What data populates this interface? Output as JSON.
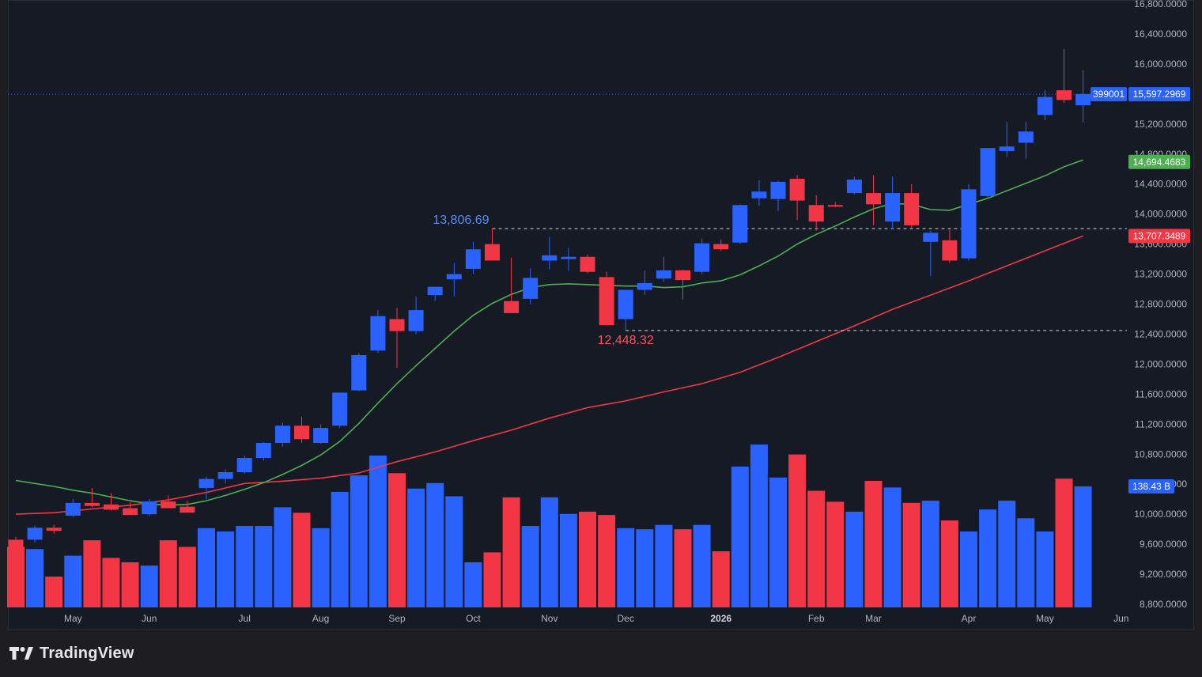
{
  "chart_data": {
    "type": "candlestick",
    "timeframe": "weekly",
    "y_axis": {
      "ticks": [
        "16,800.0000",
        "16,400.0000",
        "16,000.0000",
        "15,200.0000",
        "14,800.0000",
        "14,400.0000",
        "14,000.0000",
        "13,600.0000",
        "13,200.0000",
        "12,800.0000",
        "12,400.0000",
        "12,000.0000",
        "11,600.0000",
        "11,200.0000",
        "10,800.0000",
        "10,400.0000",
        "10,000.0000",
        "9,600.0000",
        "9,200.0000",
        "8,800.0000"
      ],
      "range": [
        8800,
        16850
      ]
    },
    "x_axis": {
      "labels": [
        "May",
        "Jun",
        "Jul",
        "Aug",
        "Sep",
        "Oct",
        "Nov",
        "Dec",
        "2026",
        "Feb",
        "Mar",
        "Apr",
        "May",
        "Jun"
      ],
      "label_bar_index": [
        3,
        7,
        12,
        16,
        20,
        24,
        28,
        32,
        37,
        42,
        45,
        50,
        54,
        58
      ],
      "strong_labels": [
        "2026"
      ]
    },
    "candles": [
      {
        "o": 9660,
        "h": 9700,
        "l": 9500,
        "c": 9500
      },
      {
        "o": 9660,
        "h": 9850,
        "l": 9620,
        "c": 9820
      },
      {
        "o": 9820,
        "h": 9860,
        "l": 9740,
        "c": 9780
      },
      {
        "o": 9980,
        "h": 10200,
        "l": 9960,
        "c": 10150
      },
      {
        "o": 10150,
        "h": 10350,
        "l": 10090,
        "c": 10110
      },
      {
        "o": 10130,
        "h": 10280,
        "l": 10050,
        "c": 10060
      },
      {
        "o": 10080,
        "h": 10160,
        "l": 9990,
        "c": 9990
      },
      {
        "o": 10000,
        "h": 10200,
        "l": 9980,
        "c": 10170
      },
      {
        "o": 10170,
        "h": 10250,
        "l": 10080,
        "c": 10080
      },
      {
        "o": 10100,
        "h": 10180,
        "l": 10020,
        "c": 10020
      },
      {
        "o": 10350,
        "h": 10500,
        "l": 10200,
        "c": 10470
      },
      {
        "o": 10470,
        "h": 10600,
        "l": 10410,
        "c": 10560
      },
      {
        "o": 10560,
        "h": 10780,
        "l": 10540,
        "c": 10750
      },
      {
        "o": 10750,
        "h": 10960,
        "l": 10710,
        "c": 10950
      },
      {
        "o": 10950,
        "h": 11220,
        "l": 10900,
        "c": 11180
      },
      {
        "o": 11180,
        "h": 11300,
        "l": 10950,
        "c": 11000
      },
      {
        "o": 10950,
        "h": 11200,
        "l": 10940,
        "c": 11150
      },
      {
        "o": 11180,
        "h": 11620,
        "l": 11150,
        "c": 11620
      },
      {
        "o": 11650,
        "h": 12150,
        "l": 11640,
        "c": 12120
      },
      {
        "o": 12180,
        "h": 12720,
        "l": 12150,
        "c": 12640
      },
      {
        "o": 12600,
        "h": 12750,
        "l": 11950,
        "c": 12440
      },
      {
        "o": 12440,
        "h": 12900,
        "l": 12400,
        "c": 12720
      },
      {
        "o": 12920,
        "h": 13030,
        "l": 12840,
        "c": 13030
      },
      {
        "o": 13130,
        "h": 13350,
        "l": 12900,
        "c": 13200
      },
      {
        "o": 13270,
        "h": 13630,
        "l": 13200,
        "c": 13530
      },
      {
        "o": 13600,
        "h": 13810,
        "l": 13440,
        "c": 13380
      },
      {
        "o": 12840,
        "h": 13420,
        "l": 12680,
        "c": 12680
      },
      {
        "o": 12870,
        "h": 13280,
        "l": 12800,
        "c": 13150
      },
      {
        "o": 13380,
        "h": 13700,
        "l": 13260,
        "c": 13450
      },
      {
        "o": 13400,
        "h": 13550,
        "l": 13240,
        "c": 13430
      },
      {
        "o": 13430,
        "h": 13460,
        "l": 13210,
        "c": 13230
      },
      {
        "o": 13160,
        "h": 13230,
        "l": 12520,
        "c": 12520
      },
      {
        "o": 12600,
        "h": 12990,
        "l": 12450,
        "c": 12990
      },
      {
        "o": 12990,
        "h": 13250,
        "l": 12920,
        "c": 13080
      },
      {
        "o": 13140,
        "h": 13430,
        "l": 13100,
        "c": 13250
      },
      {
        "o": 13250,
        "h": 13260,
        "l": 12860,
        "c": 13120
      },
      {
        "o": 13230,
        "h": 13670,
        "l": 13200,
        "c": 13610
      },
      {
        "o": 13600,
        "h": 13660,
        "l": 13510,
        "c": 13530
      },
      {
        "o": 13620,
        "h": 14130,
        "l": 13600,
        "c": 14120
      },
      {
        "o": 14210,
        "h": 14450,
        "l": 14110,
        "c": 14300
      },
      {
        "o": 14200,
        "h": 14440,
        "l": 14040,
        "c": 14430
      },
      {
        "o": 14470,
        "h": 14520,
        "l": 13920,
        "c": 14180
      },
      {
        "o": 14120,
        "h": 14250,
        "l": 13780,
        "c": 13900
      },
      {
        "o": 14120,
        "h": 14160,
        "l": 14090,
        "c": 14100
      },
      {
        "o": 14280,
        "h": 14500,
        "l": 14260,
        "c": 14460
      },
      {
        "o": 14280,
        "h": 14520,
        "l": 13850,
        "c": 14130
      },
      {
        "o": 13900,
        "h": 14500,
        "l": 13800,
        "c": 14280
      },
      {
        "o": 14280,
        "h": 14400,
        "l": 13820,
        "c": 13850
      },
      {
        "o": 13630,
        "h": 13780,
        "l": 13170,
        "c": 13750
      },
      {
        "o": 13650,
        "h": 13790,
        "l": 13350,
        "c": 13380
      },
      {
        "o": 13410,
        "h": 14400,
        "l": 13380,
        "c": 14330
      },
      {
        "o": 14240,
        "h": 14880,
        "l": 14200,
        "c": 14880
      },
      {
        "o": 14840,
        "h": 15230,
        "l": 14760,
        "c": 14900
      },
      {
        "o": 14950,
        "h": 15230,
        "l": 14740,
        "c": 15100
      },
      {
        "o": 15320,
        "h": 15650,
        "l": 15250,
        "c": 15560
      },
      {
        "o": 15650,
        "h": 16200,
        "l": 15480,
        "c": 15520
      },
      {
        "o": 15450,
        "h": 15920,
        "l": 15220,
        "c": 15600
      }
    ],
    "volume": [
      0.55,
      0.53,
      0.28,
      0.47,
      0.61,
      0.45,
      0.41,
      0.38,
      0.61,
      0.55,
      0.72,
      0.69,
      0.74,
      0.74,
      0.91,
      0.86,
      0.72,
      1.05,
      1.2,
      1.38,
      1.22,
      1.08,
      1.13,
      1.01,
      0.41,
      0.5,
      1.0,
      0.74,
      1.0,
      0.85,
      0.87,
      0.84,
      0.72,
      0.71,
      0.75,
      0.71,
      0.75,
      0.51,
      1.28,
      1.48,
      1.18,
      1.39,
      1.06,
      0.96,
      0.87,
      1.15,
      1.09,
      0.95,
      0.97,
      0.79,
      0.69,
      0.89,
      0.97,
      0.81,
      0.69,
      1.17,
      1.1
    ],
    "volume_scale_max": 1.38,
    "ma_short": [
      [
        0,
        10450
      ],
      [
        1,
        10410
      ],
      [
        2,
        10370
      ],
      [
        3,
        10320
      ],
      [
        4,
        10280
      ],
      [
        5,
        10230
      ],
      [
        6,
        10180
      ],
      [
        7,
        10140
      ],
      [
        8,
        10120
      ],
      [
        9,
        10130
      ],
      [
        10,
        10180
      ],
      [
        11,
        10250
      ],
      [
        12,
        10330
      ],
      [
        13,
        10420
      ],
      [
        14,
        10530
      ],
      [
        15,
        10650
      ],
      [
        16,
        10790
      ],
      [
        17,
        10970
      ],
      [
        18,
        11210
      ],
      [
        19,
        11480
      ],
      [
        20,
        11740
      ],
      [
        21,
        11980
      ],
      [
        22,
        12210
      ],
      [
        23,
        12440
      ],
      [
        24,
        12650
      ],
      [
        25,
        12810
      ],
      [
        26,
        12930
      ],
      [
        27,
        13020
      ],
      [
        28,
        13060
      ],
      [
        29,
        13070
      ],
      [
        30,
        13060
      ],
      [
        31,
        13050
      ],
      [
        32,
        13040
      ],
      [
        33,
        13040
      ],
      [
        34,
        13020
      ],
      [
        35,
        13030
      ],
      [
        36,
        13080
      ],
      [
        37,
        13110
      ],
      [
        38,
        13190
      ],
      [
        39,
        13310
      ],
      [
        40,
        13440
      ],
      [
        41,
        13600
      ],
      [
        42,
        13730
      ],
      [
        43,
        13840
      ],
      [
        44,
        13960
      ],
      [
        45,
        14070
      ],
      [
        46,
        14140
      ],
      [
        47,
        14130
      ],
      [
        48,
        14060
      ],
      [
        49,
        14050
      ],
      [
        50,
        14130
      ],
      [
        51,
        14210
      ],
      [
        52,
        14310
      ],
      [
        53,
        14410
      ],
      [
        54,
        14510
      ],
      [
        55,
        14630
      ],
      [
        56,
        14720
      ]
    ],
    "ma_long": [
      [
        0,
        10000
      ],
      [
        2,
        10020
      ],
      [
        4,
        10070
      ],
      [
        6,
        10120
      ],
      [
        8,
        10190
      ],
      [
        10,
        10290
      ],
      [
        12,
        10410
      ],
      [
        14,
        10440
      ],
      [
        16,
        10480
      ],
      [
        18,
        10550
      ],
      [
        20,
        10700
      ],
      [
        22,
        10830
      ],
      [
        24,
        10980
      ],
      [
        26,
        11120
      ],
      [
        28,
        11280
      ],
      [
        30,
        11420
      ],
      [
        32,
        11510
      ],
      [
        34,
        11630
      ],
      [
        36,
        11740
      ],
      [
        38,
        11890
      ],
      [
        40,
        12090
      ],
      [
        42,
        12300
      ],
      [
        44,
        12510
      ],
      [
        46,
        12730
      ],
      [
        48,
        12920
      ],
      [
        50,
        13110
      ],
      [
        52,
        13310
      ],
      [
        54,
        13510
      ],
      [
        56,
        13710
      ]
    ],
    "annotations": {
      "high_label": "13,806.69",
      "high_value": 13806.69,
      "high_index": 25,
      "low_label": "12,448.32",
      "low_value": 12448.32,
      "low_index": 32
    },
    "price_tags": {
      "last_price": "15,597.2969",
      "last_price_value": 15597.2969,
      "countdown": "399001",
      "ma_short_value": "14,694.4683",
      "ma_short_num": 14694.4683,
      "ma_long_value": "13,707.3489",
      "ma_long_num": 13707.3489,
      "volume_value": "138.43 B",
      "volume_num": 1.1
    },
    "colors": {
      "background": "#161a25",
      "up": "#2962ff",
      "down": "#f23645",
      "ma_short": "#4caf50",
      "ma_long": "#f23645",
      "axis_text": "#b2b5be",
      "last_price_tag": "#2962ff",
      "ma_short_tag": "#4caf50",
      "ma_long_tag": "#f23645"
    }
  },
  "footer": {
    "brand_name": "TradingView",
    "logo_icon": "tradingview-logo-icon"
  }
}
